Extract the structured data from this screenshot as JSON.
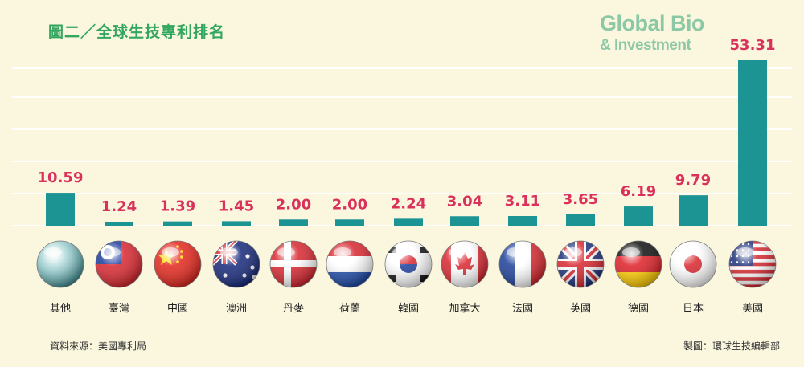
{
  "title": "圖二／全球生技專利排名",
  "brand": {
    "line1": "Global Bio",
    "line2": "& Investment"
  },
  "source": "資料來源：美國專利局",
  "credit": "製圖：環球生技編輯部",
  "colors": {
    "bar": "#1d9494",
    "value": "#d9315a",
    "title": "#33a65f",
    "grid": "#ffffff",
    "background": "#fbf7df"
  },
  "chart_data": {
    "type": "bar",
    "title": "圖二／全球生技專利排名",
    "xlabel": "",
    "ylabel": "",
    "ylim": [
      0,
      55
    ],
    "grid": true,
    "categories": [
      "其他",
      "臺灣",
      "中國",
      "澳洲",
      "丹麥",
      "荷蘭",
      "韓國",
      "加拿大",
      "法國",
      "英國",
      "德國",
      "日本",
      "美國"
    ],
    "values": [
      10.59,
      1.24,
      1.39,
      1.45,
      2.0,
      2.0,
      2.24,
      3.04,
      3.11,
      3.65,
      6.19,
      9.79,
      53.31
    ],
    "value_labels": [
      "10.59",
      "1.24",
      "1.39",
      "1.45",
      "2.00",
      "2.00",
      "2.24",
      "3.04",
      "3.11",
      "3.65",
      "6.19",
      "9.79",
      "53.31"
    ],
    "flag_icons": [
      "globe-icon",
      "flag-taiwan-icon",
      "flag-china-icon",
      "flag-australia-icon",
      "flag-denmark-icon",
      "flag-netherlands-icon",
      "flag-korea-icon",
      "flag-canada-icon",
      "flag-france-icon",
      "flag-uk-icon",
      "flag-germany-icon",
      "flag-japan-icon",
      "flag-usa-icon"
    ]
  }
}
